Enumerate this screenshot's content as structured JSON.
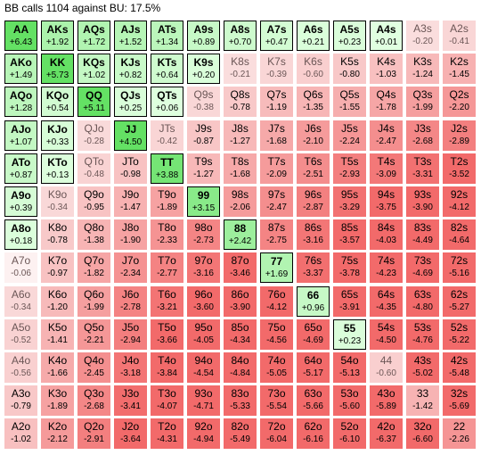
{
  "title": "BB calls 1104 against BU: 17.5%",
  "rows": [
    [
      [
        "AA",
        "+6.43",
        1
      ],
      [
        "AKs",
        "+1.92",
        1
      ],
      [
        "AQs",
        "+1.72",
        1
      ],
      [
        "AJs",
        "+1.52",
        1
      ],
      [
        "ATs",
        "+1.34",
        1
      ],
      [
        "A9s",
        "+0.89",
        1
      ],
      [
        "A8s",
        "+0.70",
        1
      ],
      [
        "A7s",
        "+0.47",
        1
      ],
      [
        "A6s",
        "+0.21",
        1
      ],
      [
        "A5s",
        "+0.23",
        1
      ],
      [
        "A4s",
        "+0.01",
        1
      ],
      [
        "A3s",
        "-0.20",
        0
      ],
      [
        "A2s",
        "-0.41",
        0
      ]
    ],
    [
      [
        "AKo",
        "+1.49",
        1
      ],
      [
        "KK",
        "+5.73",
        1
      ],
      [
        "KQs",
        "+1.02",
        1
      ],
      [
        "KJs",
        "+0.82",
        1
      ],
      [
        "KTs",
        "+0.64",
        1
      ],
      [
        "K9s",
        "+0.20",
        1
      ],
      [
        "K8s",
        "-0.21",
        0
      ],
      [
        "K7s",
        "-0.39",
        0
      ],
      [
        "K6s",
        "-0.60",
        0
      ],
      [
        "K5s",
        "-0.80",
        0
      ],
      [
        "K4s",
        "-1.03",
        0
      ],
      [
        "K3s",
        "-1.24",
        0
      ],
      [
        "K2s",
        "-1.45",
        0
      ]
    ],
    [
      [
        "AQo",
        "+1.28",
        1
      ],
      [
        "KQo",
        "+0.54",
        1
      ],
      [
        "QQ",
        "+5.11",
        1
      ],
      [
        "QJs",
        "+0.25",
        1
      ],
      [
        "QTs",
        "+0.06",
        1
      ],
      [
        "Q9s",
        "-0.38",
        0
      ],
      [
        "Q8s",
        "-0.78",
        0
      ],
      [
        "Q7s",
        "-1.19",
        0
      ],
      [
        "Q6s",
        "-1.35",
        0
      ],
      [
        "Q5s",
        "-1.55",
        0
      ],
      [
        "Q4s",
        "-1.78",
        0
      ],
      [
        "Q3s",
        "-1.99",
        0
      ],
      [
        "Q2s",
        "-2.20",
        0
      ]
    ],
    [
      [
        "AJo",
        "+1.07",
        1
      ],
      [
        "KJo",
        "+0.33",
        1
      ],
      [
        "QJo",
        "-0.28",
        0
      ],
      [
        "JJ",
        "+4.50",
        1
      ],
      [
        "JTs",
        "-0.42",
        0
      ],
      [
        "J9s",
        "-0.87",
        0
      ],
      [
        "J8s",
        "-1.27",
        0
      ],
      [
        "J7s",
        "-1.68",
        0
      ],
      [
        "J6s",
        "-2.10",
        0
      ],
      [
        "J5s",
        "-2.24",
        0
      ],
      [
        "J4s",
        "-2.47",
        0
      ],
      [
        "J3s",
        "-2.68",
        0
      ],
      [
        "J2s",
        "-2.89",
        0
      ]
    ],
    [
      [
        "ATo",
        "+0.87",
        1
      ],
      [
        "KTo",
        "+0.13",
        1
      ],
      [
        "QTo",
        "-0.48",
        0
      ],
      [
        "JTo",
        "-0.98",
        0
      ],
      [
        "TT",
        "+3.88",
        1
      ],
      [
        "T9s",
        "-1.27",
        0
      ],
      [
        "T8s",
        "-1.68",
        0
      ],
      [
        "T7s",
        "-2.09",
        0
      ],
      [
        "T6s",
        "-2.51",
        0
      ],
      [
        "T5s",
        "-2.93",
        0
      ],
      [
        "T4s",
        "-3.09",
        0
      ],
      [
        "T3s",
        "-3.31",
        0
      ],
      [
        "T2s",
        "-3.52",
        0
      ]
    ],
    [
      [
        "A9o",
        "+0.39",
        1
      ],
      [
        "K9o",
        "-0.34",
        0
      ],
      [
        "Q9o",
        "-0.95",
        0
      ],
      [
        "J9o",
        "-1.47",
        0
      ],
      [
        "T9o",
        "-1.89",
        0
      ],
      [
        "99",
        "+3.15",
        1
      ],
      [
        "98s",
        "-2.06",
        0
      ],
      [
        "97s",
        "-2.47",
        0
      ],
      [
        "96s",
        "-2.87",
        0
      ],
      [
        "95s",
        "-3.29",
        0
      ],
      [
        "94s",
        "-3.75",
        0
      ],
      [
        "93s",
        "-3.90",
        0
      ],
      [
        "92s",
        "-4.12",
        0
      ]
    ],
    [
      [
        "A8o",
        "+0.18",
        1
      ],
      [
        "K8o",
        "-0.78",
        0
      ],
      [
        "Q8o",
        "-1.38",
        0
      ],
      [
        "J8o",
        "-1.90",
        0
      ],
      [
        "T8o",
        "-2.33",
        0
      ],
      [
        "98o",
        "-2.73",
        0
      ],
      [
        "88",
        "+2.42",
        1
      ],
      [
        "87s",
        "-2.75",
        0
      ],
      [
        "86s",
        "-3.16",
        0
      ],
      [
        "85s",
        "-3.57",
        0
      ],
      [
        "84s",
        "-4.03",
        0
      ],
      [
        "83s",
        "-4.49",
        0
      ],
      [
        "82s",
        "-4.64",
        0
      ]
    ],
    [
      [
        "A7o",
        "-0.06",
        0
      ],
      [
        "K7o",
        "-0.97",
        0
      ],
      [
        "Q7o",
        "-1.82",
        0
      ],
      [
        "J7o",
        "-2.34",
        0
      ],
      [
        "T7o",
        "-2.77",
        0
      ],
      [
        "97o",
        "-3.16",
        0
      ],
      [
        "87o",
        "-3.46",
        0
      ],
      [
        "77",
        "+1.69",
        1
      ],
      [
        "76s",
        "-3.37",
        0
      ],
      [
        "75s",
        "-3.78",
        0
      ],
      [
        "74s",
        "-4.23",
        0
      ],
      [
        "73s",
        "-4.69",
        0
      ],
      [
        "72s",
        "-5.16",
        0
      ]
    ],
    [
      [
        "A6o",
        "-0.34",
        0
      ],
      [
        "K6o",
        "-1.20",
        0
      ],
      [
        "Q6o",
        "-1.99",
        0
      ],
      [
        "J6o",
        "-2.78",
        0
      ],
      [
        "T6o",
        "-3.21",
        0
      ],
      [
        "96o",
        "-3.60",
        0
      ],
      [
        "86o",
        "-3.90",
        0
      ],
      [
        "76o",
        "-4.12",
        0
      ],
      [
        "66",
        "+0.96",
        1
      ],
      [
        "65s",
        "-3.91",
        0
      ],
      [
        "64s",
        "-4.35",
        0
      ],
      [
        "63s",
        "-4.80",
        0
      ],
      [
        "62s",
        "-5.27",
        0
      ]
    ],
    [
      [
        "A5o",
        "-0.52",
        0
      ],
      [
        "K5o",
        "-1.41",
        0
      ],
      [
        "Q5o",
        "-2.21",
        0
      ],
      [
        "J5o",
        "-2.94",
        0
      ],
      [
        "T5o",
        "-3.66",
        0
      ],
      [
        "95o",
        "-4.05",
        0
      ],
      [
        "85o",
        "-4.34",
        0
      ],
      [
        "75o",
        "-4.56",
        0
      ],
      [
        "65o",
        "-4.69",
        0
      ],
      [
        "55",
        "+0.23",
        1
      ],
      [
        "54s",
        "-4.50",
        0
      ],
      [
        "53s",
        "-4.76",
        0
      ],
      [
        "52s",
        "-5.22",
        0
      ]
    ],
    [
      [
        "A4o",
        "-0.56",
        0
      ],
      [
        "K4o",
        "-1.66",
        0
      ],
      [
        "Q4o",
        "-2.45",
        0
      ],
      [
        "J4o",
        "-3.18",
        0
      ],
      [
        "T4o",
        "-3.84",
        0
      ],
      [
        "94o",
        "-4.54",
        0
      ],
      [
        "84o",
        "-4.84",
        0
      ],
      [
        "74o",
        "-5.05",
        0
      ],
      [
        "64o",
        "-5.17",
        0
      ],
      [
        "54o",
        "-5.13",
        0
      ],
      [
        "44",
        "-0.60",
        0
      ],
      [
        "43s",
        "-5.02",
        0
      ],
      [
        "42s",
        "-5.48",
        0
      ]
    ],
    [
      [
        "A3o",
        "-0.79",
        0
      ],
      [
        "K3o",
        "-1.89",
        0
      ],
      [
        "Q3o",
        "-2.68",
        0
      ],
      [
        "J3o",
        "-3.41",
        0
      ],
      [
        "T3o",
        "-4.07",
        0
      ],
      [
        "93o",
        "-4.71",
        0
      ],
      [
        "83o",
        "-5.33",
        0
      ],
      [
        "73o",
        "-5.54",
        0
      ],
      [
        "63o",
        "-5.66",
        0
      ],
      [
        "53o",
        "-5.60",
        0
      ],
      [
        "43o",
        "-5.89",
        0
      ],
      [
        "33",
        "-1.42",
        0
      ],
      [
        "32s",
        "-5.69",
        0
      ]
    ],
    [
      [
        "A2o",
        "-1.02",
        0
      ],
      [
        "K2o",
        "-2.12",
        0
      ],
      [
        "Q2o",
        "-2.91",
        0
      ],
      [
        "J2o",
        "-3.64",
        0
      ],
      [
        "T2o",
        "-4.31",
        0
      ],
      [
        "92o",
        "-4.94",
        0
      ],
      [
        "82o",
        "-5.49",
        0
      ],
      [
        "72o",
        "-6.04",
        0
      ],
      [
        "62o",
        "-6.16",
        0
      ],
      [
        "52o",
        "-6.10",
        0
      ],
      [
        "42o",
        "-6.37",
        0
      ],
      [
        "32o",
        "-6.60",
        0
      ],
      [
        "22",
        "-2.26",
        0
      ]
    ]
  ]
}
